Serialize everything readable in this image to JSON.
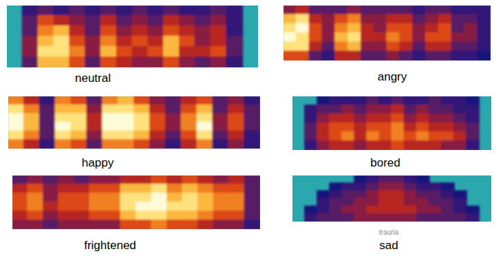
{
  "chart_data": [
    {
      "type": "heatmap",
      "title": "neutral",
      "cells": [
        [
          null,
          0.2,
          0.3,
          0.2,
          0.3,
          0.2,
          0.3,
          0.2,
          0.3,
          0.2,
          0.3,
          0.2,
          0.2,
          0.3,
          0.2,
          null
        ],
        [
          null,
          0.3,
          0.6,
          0.5,
          0.4,
          0.3,
          0.5,
          0.3,
          0.4,
          0.3,
          0.5,
          0.4,
          0.3,
          0.4,
          0.2,
          null
        ],
        [
          null,
          0.3,
          0.7,
          0.8,
          0.5,
          0.3,
          0.6,
          0.4,
          0.5,
          0.4,
          0.6,
          0.5,
          0.4,
          0.5,
          0.2,
          null
        ],
        [
          null,
          0.4,
          0.8,
          0.9,
          0.6,
          0.4,
          0.7,
          0.5,
          0.6,
          0.5,
          0.8,
          0.6,
          0.4,
          0.5,
          0.3,
          null
        ],
        [
          null,
          0.4,
          0.9,
          0.9,
          0.7,
          0.4,
          0.8,
          0.6,
          0.5,
          0.6,
          0.8,
          0.5,
          0.5,
          0.6,
          0.3,
          null
        ],
        [
          null,
          0.3,
          0.8,
          0.8,
          0.6,
          0.3,
          0.6,
          0.5,
          0.4,
          0.4,
          0.6,
          0.4,
          0.3,
          0.4,
          0.2,
          null
        ]
      ]
    },
    {
      "type": "heatmap",
      "title": "angry",
      "cells": [
        [
          0.4,
          0.5,
          0.3,
          0.3,
          0.3,
          0.4,
          0.3,
          0.3,
          0.3,
          0.3,
          0.2,
          0.3,
          0.3,
          0.2,
          0.2,
          0.2
        ],
        [
          0.8,
          0.9,
          0.5,
          0.4,
          0.6,
          0.7,
          0.4,
          0.4,
          0.5,
          0.5,
          0.3,
          0.4,
          0.5,
          0.3,
          0.3,
          0.2
        ],
        [
          0.9,
          1.0,
          0.6,
          0.4,
          0.7,
          0.8,
          0.5,
          0.4,
          0.6,
          0.6,
          0.4,
          0.5,
          0.6,
          0.3,
          0.4,
          0.2
        ],
        [
          1.0,
          0.9,
          0.6,
          0.4,
          0.8,
          0.9,
          0.5,
          0.5,
          0.7,
          0.6,
          0.4,
          0.6,
          0.6,
          0.4,
          0.4,
          0.2
        ],
        [
          0.9,
          0.9,
          0.5,
          0.3,
          0.7,
          0.8,
          0.4,
          0.4,
          0.6,
          0.5,
          0.3,
          0.5,
          0.5,
          0.3,
          0.3,
          0.2
        ],
        [
          0.6,
          0.6,
          0.3,
          0.2,
          0.5,
          0.5,
          0.3,
          0.3,
          0.4,
          0.3,
          0.2,
          0.3,
          0.3,
          0.2,
          0.2,
          0.1
        ]
      ]
    },
    {
      "type": "heatmap",
      "title": "happy",
      "cells": [
        [
          0.7,
          0.5,
          0.2,
          0.7,
          0.6,
          0.3,
          0.7,
          0.8,
          0.6,
          0.4,
          0.3,
          0.5,
          0.6,
          0.3,
          0.4,
          0.2
        ],
        [
          0.9,
          0.7,
          0.3,
          0.8,
          0.8,
          0.4,
          0.9,
          0.9,
          0.8,
          0.5,
          0.3,
          0.6,
          0.8,
          0.3,
          0.5,
          0.3
        ],
        [
          1.0,
          0.8,
          0.3,
          0.9,
          0.9,
          0.5,
          1.0,
          1.0,
          0.9,
          0.6,
          0.4,
          0.7,
          0.9,
          0.4,
          0.6,
          0.3
        ],
        [
          1.0,
          0.8,
          0.3,
          1.0,
          0.9,
          0.5,
          1.0,
          1.0,
          0.9,
          0.6,
          0.4,
          0.7,
          1.0,
          0.4,
          0.6,
          0.3
        ],
        [
          0.9,
          0.7,
          0.3,
          0.9,
          0.8,
          0.4,
          0.9,
          0.9,
          0.8,
          0.5,
          0.3,
          0.6,
          0.9,
          0.3,
          0.5,
          0.2
        ],
        [
          0.7,
          0.5,
          0.2,
          0.7,
          0.6,
          0.3,
          0.7,
          0.7,
          0.6,
          0.4,
          0.2,
          0.5,
          0.7,
          0.2,
          0.4,
          0.2
        ]
      ]
    },
    {
      "type": "heatmap",
      "title": "bored",
      "cells": [
        [
          null,
          null,
          0.1,
          0.2,
          0.2,
          0.2,
          0.3,
          0.2,
          0.3,
          0.2,
          0.2,
          0.3,
          0.2,
          0.2,
          0.1,
          null
        ],
        [
          null,
          0.2,
          0.3,
          0.3,
          0.4,
          0.3,
          0.4,
          0.4,
          0.5,
          0.3,
          0.4,
          0.3,
          0.3,
          0.2,
          0.2,
          null
        ],
        [
          null,
          0.2,
          0.4,
          0.5,
          0.5,
          0.4,
          0.5,
          0.5,
          0.6,
          0.4,
          0.5,
          0.4,
          0.4,
          0.3,
          0.2,
          null
        ],
        [
          null,
          0.3,
          0.5,
          0.6,
          0.6,
          0.5,
          0.6,
          0.6,
          0.7,
          0.5,
          0.6,
          0.5,
          0.5,
          0.4,
          0.3,
          null
        ],
        [
          null,
          0.3,
          0.5,
          0.6,
          0.7,
          0.5,
          0.7,
          0.6,
          0.7,
          0.6,
          0.7,
          0.6,
          0.6,
          0.5,
          0.3,
          null
        ],
        [
          null,
          0.2,
          0.4,
          0.5,
          0.5,
          0.4,
          0.5,
          0.5,
          0.6,
          0.5,
          0.5,
          0.5,
          0.4,
          0.4,
          0.2,
          null
        ]
      ]
    },
    {
      "type": "heatmap",
      "title": "frightened",
      "cells": [
        [
          0.3,
          0.4,
          0.3,
          0.4,
          0.3,
          0.4,
          0.4,
          0.5,
          0.5,
          0.6,
          0.5,
          0.6,
          0.5,
          0.4,
          0.5,
          0.3
        ],
        [
          0.5,
          0.6,
          0.4,
          0.5,
          0.5,
          0.6,
          0.6,
          0.8,
          0.8,
          0.9,
          0.7,
          0.8,
          0.7,
          0.6,
          0.6,
          0.3
        ],
        [
          0.6,
          0.7,
          0.4,
          0.6,
          0.6,
          0.7,
          0.7,
          0.9,
          0.9,
          1.0,
          0.8,
          0.9,
          0.8,
          0.7,
          0.7,
          0.3
        ],
        [
          0.6,
          0.7,
          0.5,
          0.6,
          0.6,
          0.7,
          0.7,
          0.9,
          1.0,
          1.0,
          0.9,
          0.9,
          0.8,
          0.7,
          0.7,
          0.3
        ],
        [
          0.5,
          0.6,
          0.4,
          0.5,
          0.5,
          0.6,
          0.6,
          0.8,
          0.9,
          0.9,
          0.8,
          0.8,
          0.7,
          0.6,
          0.6,
          0.3
        ],
        [
          0.4,
          0.4,
          0.3,
          0.4,
          0.4,
          0.4,
          0.4,
          0.6,
          0.6,
          0.7,
          0.6,
          0.6,
          0.5,
          0.4,
          0.4,
          0.2
        ]
      ]
    },
    {
      "type": "heatmap",
      "title": "sad",
      "annotation": "trauria",
      "cells": [
        [
          null,
          null,
          null,
          null,
          null,
          0.1,
          0.2,
          0.3,
          0.3,
          0.2,
          0.1,
          null,
          null,
          null,
          null,
          null
        ],
        [
          null,
          null,
          null,
          0.1,
          0.2,
          0.2,
          0.3,
          0.4,
          0.4,
          0.3,
          0.2,
          0.2,
          0.1,
          null,
          null,
          null
        ],
        [
          null,
          null,
          0.1,
          0.2,
          0.3,
          0.3,
          0.4,
          0.5,
          0.5,
          0.4,
          0.3,
          0.3,
          0.2,
          0.1,
          null,
          null
        ],
        [
          null,
          null,
          0.2,
          0.3,
          0.3,
          0.4,
          0.4,
          0.5,
          0.5,
          0.4,
          0.4,
          0.3,
          0.3,
          0.2,
          null,
          null
        ],
        [
          null,
          0.1,
          0.2,
          0.3,
          0.4,
          0.4,
          0.5,
          0.5,
          0.5,
          0.5,
          0.4,
          0.4,
          0.3,
          0.2,
          0.1,
          null
        ],
        [
          null,
          0.2,
          0.3,
          0.3,
          0.3,
          0.4,
          0.4,
          0.4,
          0.4,
          0.4,
          0.3,
          0.3,
          0.3,
          0.3,
          0.2,
          null
        ]
      ]
    }
  ]
}
